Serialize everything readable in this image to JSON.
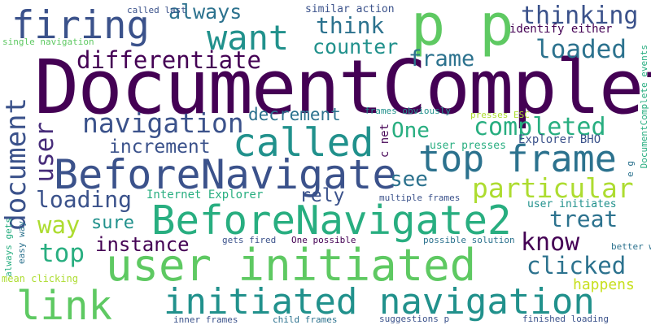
{
  "words": {
    "documentcomplete": "DocumentComplete",
    "user_initiated": "user initiated",
    "beforenavigate2": "BeforeNavigate2",
    "beforenavigate": "BeforeNavigate",
    "initiated_navigation": "initiated navigation",
    "top_frame": "top frame",
    "called": "called",
    "link": "link",
    "firing": "firing",
    "want": "want",
    "p_p": "p p",
    "navigation": "navigation",
    "particular": "particular",
    "completed": "completed",
    "differentiate": "differentiate",
    "loaded": "loaded",
    "thinking": "thinking",
    "always": "always",
    "think": "think",
    "counter": "counter",
    "frame": "frame",
    "know": "know",
    "clicked": "clicked",
    "instance": "instance",
    "loading": "loading",
    "increment": "increment",
    "decrement": "decrement",
    "document": "document",
    "user_vertical": "user",
    "see": "see",
    "treat": "treat",
    "one": "One",
    "way": "way",
    "sure": "sure",
    "top": "top",
    "rely": "rely",
    "happens": "happens",
    "internet_explorer": "Internet Explorer",
    "explorer_bho": "Explorer BHO",
    "user_presses": "user presses",
    "user_initiates": "user initiates",
    "identify_either": "identify either",
    "similar_action": "similar action",
    "called_last": "called last",
    "single_navigation": "single navigation",
    "frames_obviously": "frames obviously",
    "presses_esc": "presses ESC",
    "multiple_frames": "multiple frames",
    "gets_fired": "gets fired",
    "one_possible": "One possible",
    "possible_solution": "possible solution",
    "better_way": "better way",
    "mean_clicking": "mean clicking",
    "inner_frames": "inner frames",
    "child_frames": "child frames",
    "suggestions_p": "suggestions p",
    "finished_loading": "finished loading",
    "documentcomplete_events": "DocumentComplete events",
    "always_gets": "always gets",
    "easy_way": "easy way",
    "c_net": "c net",
    "e_g": "e g"
  },
  "colors": {
    "deep_purple": "#440154",
    "purple": "#472c7a",
    "indigo": "#3b528b",
    "steel_blue": "#2c728e",
    "teal": "#21918c",
    "green_teal": "#28ae80",
    "green": "#5ec962",
    "lime": "#addc30",
    "yellow_green": "#c8e020"
  }
}
